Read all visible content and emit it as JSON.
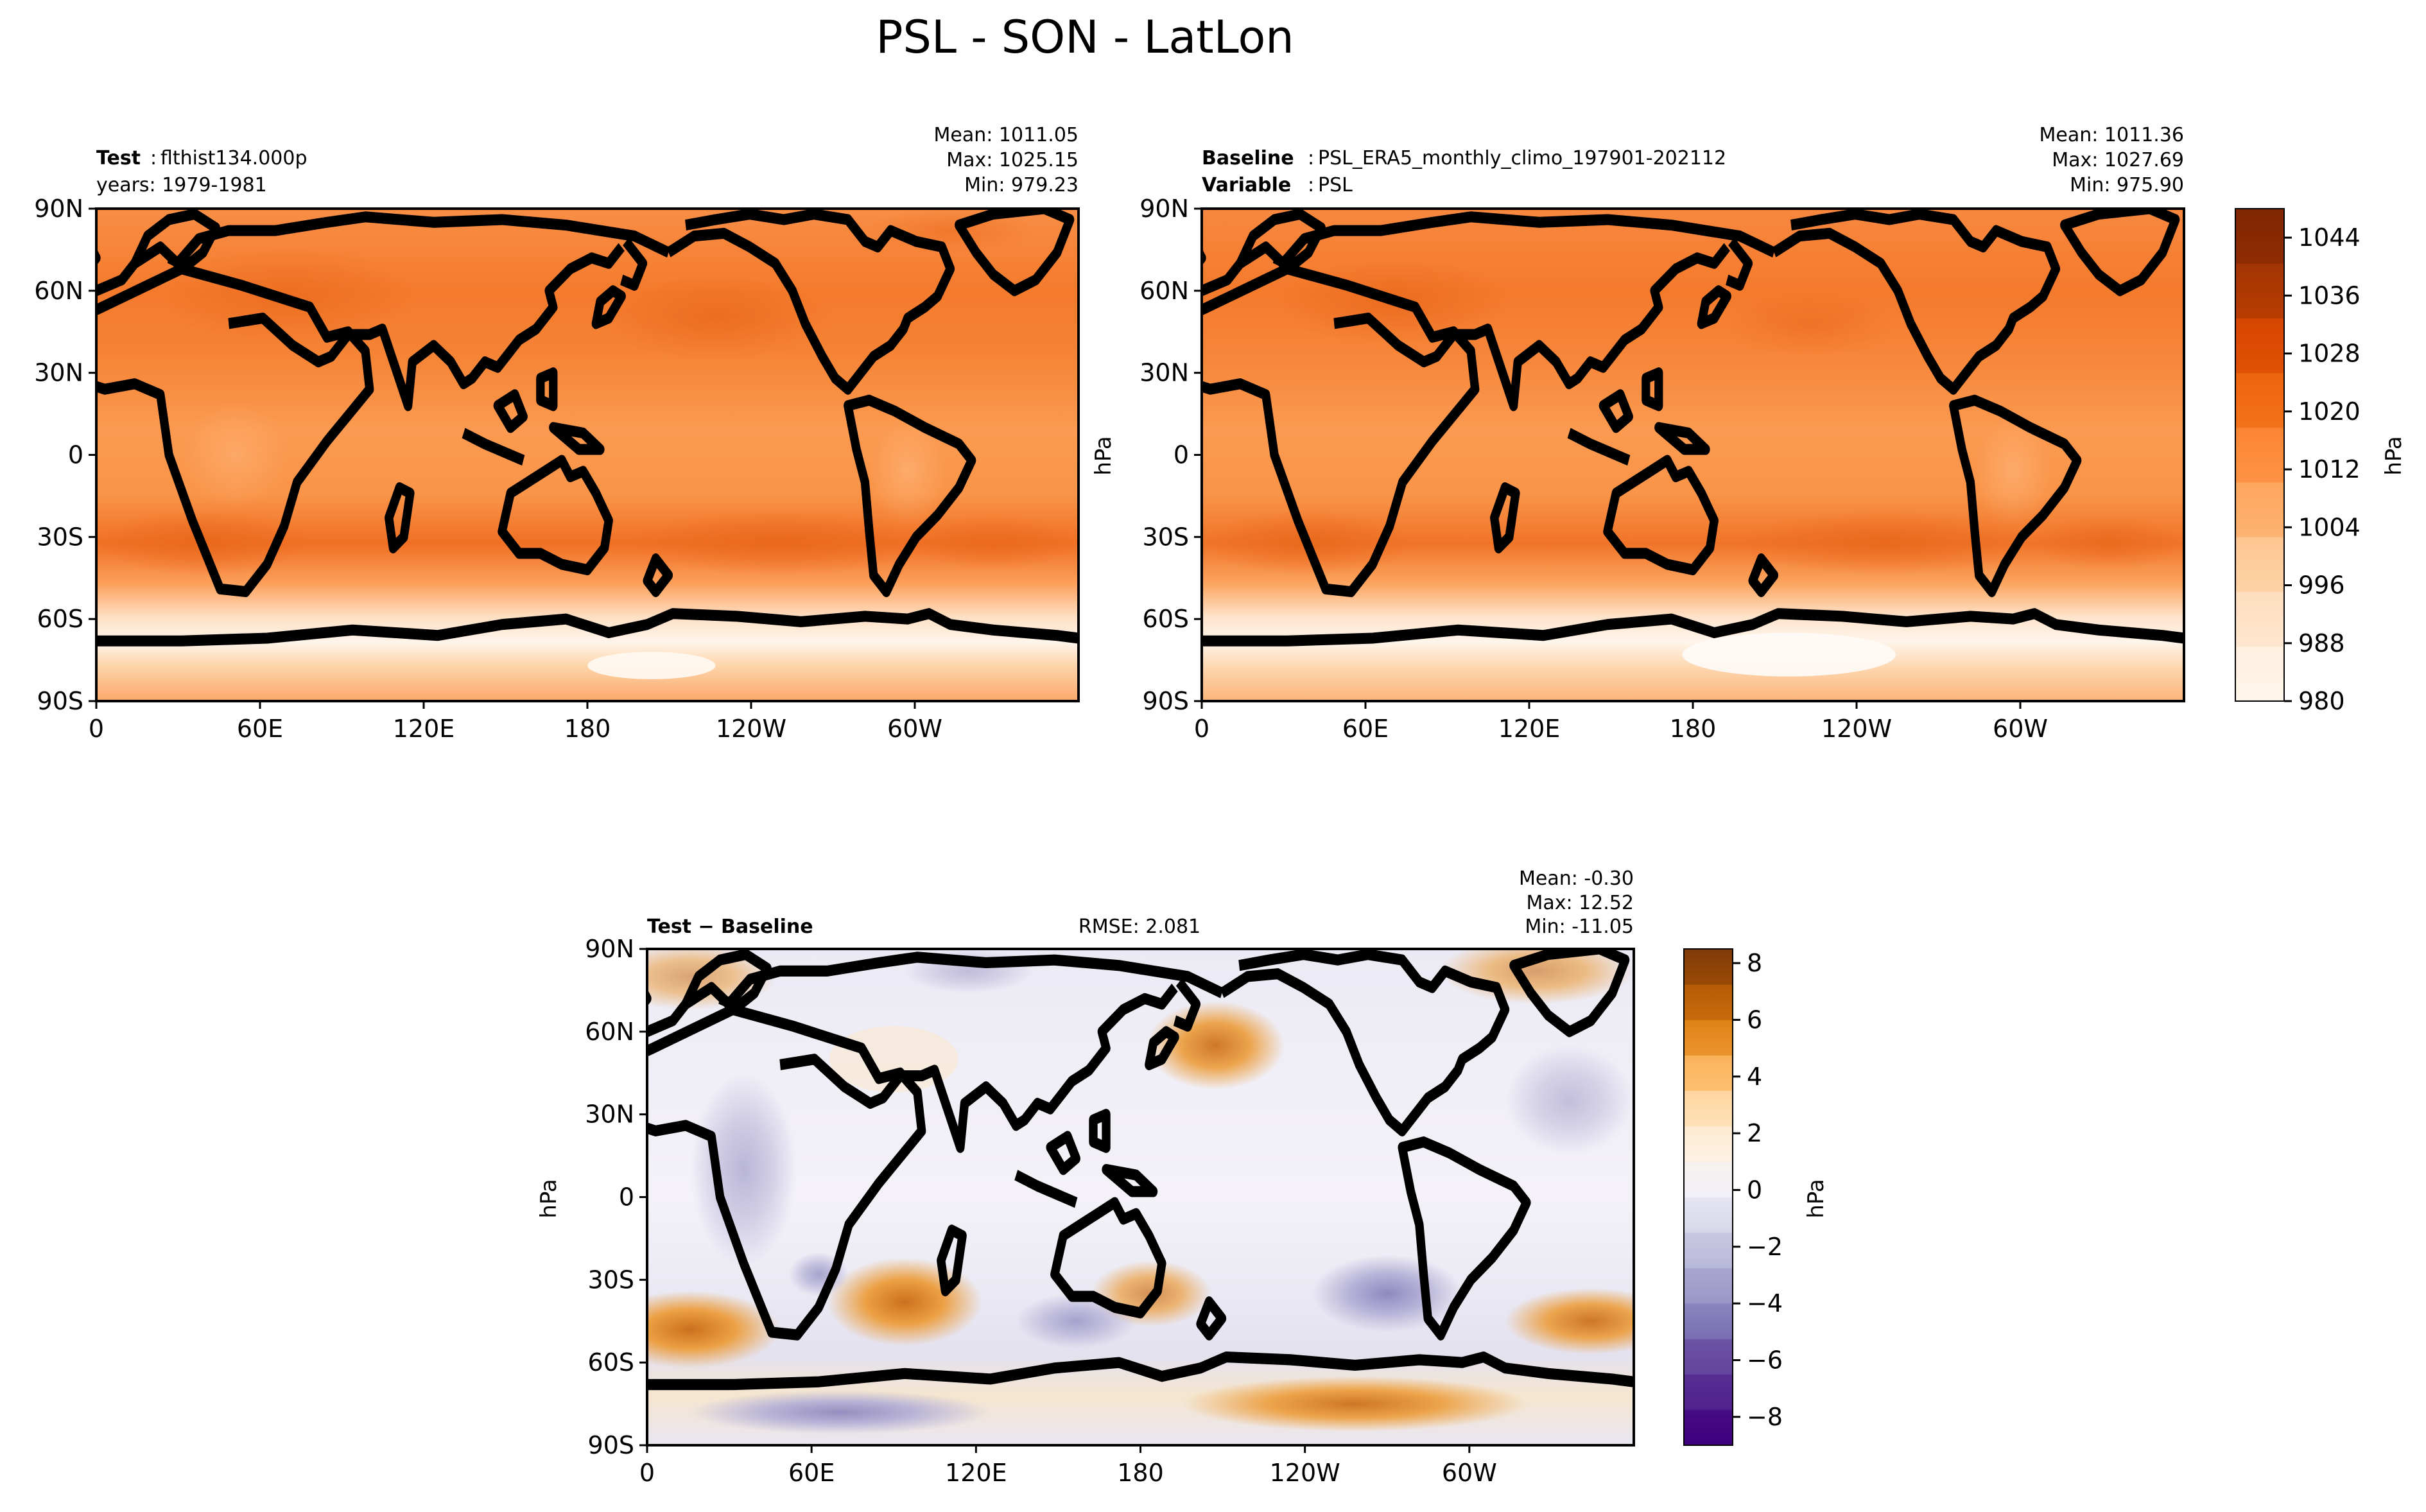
{
  "figure": {
    "title": "PSL - SON - LatLon"
  },
  "panels": {
    "test": {
      "label_bold": "Test",
      "label_text": "flthist134.000p",
      "line2": "years: 1979-1981",
      "mean": "Mean: 1011.05",
      "max": "Max: 1025.15",
      "min": "Min: 979.23"
    },
    "baseline": {
      "label_bold": "Baseline",
      "label_text": "PSL_ERA5_monthly_climo_197901-202112",
      "line2_bold": "Variable",
      "line2_text": "PSL",
      "mean": "Mean: 1011.36",
      "max": "Max: 1027.69",
      "min": "Min: 975.90"
    },
    "diff": {
      "label": "Test − Baseline",
      "rmse": "RMSE: 2.081",
      "mean": "Mean: -0.30",
      "max": "Max: 12.52",
      "min": "Min: -11.05"
    }
  },
  "axes": {
    "lat_ticks": [
      "90N",
      "60N",
      "30N",
      "0",
      "30S",
      "60S",
      "90S"
    ],
    "lon_ticks": [
      "0",
      "60E",
      "120E",
      "180",
      "120W",
      "60W"
    ],
    "unit_label": "hPa"
  },
  "colors": {
    "psl_scale": [
      "#fff5eb",
      "#fee6ce",
      "#fdd0a2",
      "#fdae6b",
      "#fd8d3c",
      "#f16913",
      "#d94801",
      "#a63603",
      "#7f2704"
    ],
    "diff_scale": [
      "#3f007d",
      "#54278f",
      "#6a51a3",
      "#807dba",
      "#9e9ac8",
      "#bcbddc",
      "#dadaeb",
      "#f2f0f7",
      "#fdf2e3",
      "#fee0b6",
      "#fdb863",
      "#e08214",
      "#b35806",
      "#7f3b08"
    ]
  },
  "chart_data": [
    {
      "type": "heatmap",
      "title": "Test: flthist134.000p",
      "variable": "PSL",
      "unit": "hPa",
      "stats": {
        "mean": 1011.05,
        "max": 1025.15,
        "min": 979.23
      },
      "colorbar": {
        "min": 980,
        "max": 1048,
        "ticks": [
          980,
          988,
          996,
          1004,
          1012,
          1020,
          1028,
          1036,
          1044
        ]
      },
      "xlim": [
        0,
        360
      ],
      "ylim": [
        -90,
        90
      ]
    },
    {
      "type": "heatmap",
      "title": "Baseline: PSL_ERA5_monthly_climo_197901-202112",
      "variable": "PSL",
      "unit": "hPa",
      "stats": {
        "mean": 1011.36,
        "max": 1027.69,
        "min": 975.9
      },
      "colorbar": {
        "min": 980,
        "max": 1048,
        "ticks": [
          980,
          988,
          996,
          1004,
          1012,
          1020,
          1028,
          1036,
          1044
        ]
      },
      "xlim": [
        0,
        360
      ],
      "ylim": [
        -90,
        90
      ]
    },
    {
      "type": "heatmap",
      "title": "Test − Baseline",
      "unit": "hPa",
      "stats": {
        "mean": -0.3,
        "max": 12.52,
        "min": -11.05,
        "rmse": 2.081
      },
      "colorbar": {
        "min": -9,
        "max": 8.5,
        "ticks": [
          -8,
          -6,
          -4,
          -2,
          0,
          2,
          4,
          6,
          8
        ],
        "tick_labels": [
          "−8",
          "−6",
          "−4",
          "−2",
          "0",
          "2",
          "4",
          "6",
          "8"
        ]
      },
      "xlim": [
        0,
        360
      ],
      "ylim": [
        -90,
        90
      ]
    }
  ]
}
